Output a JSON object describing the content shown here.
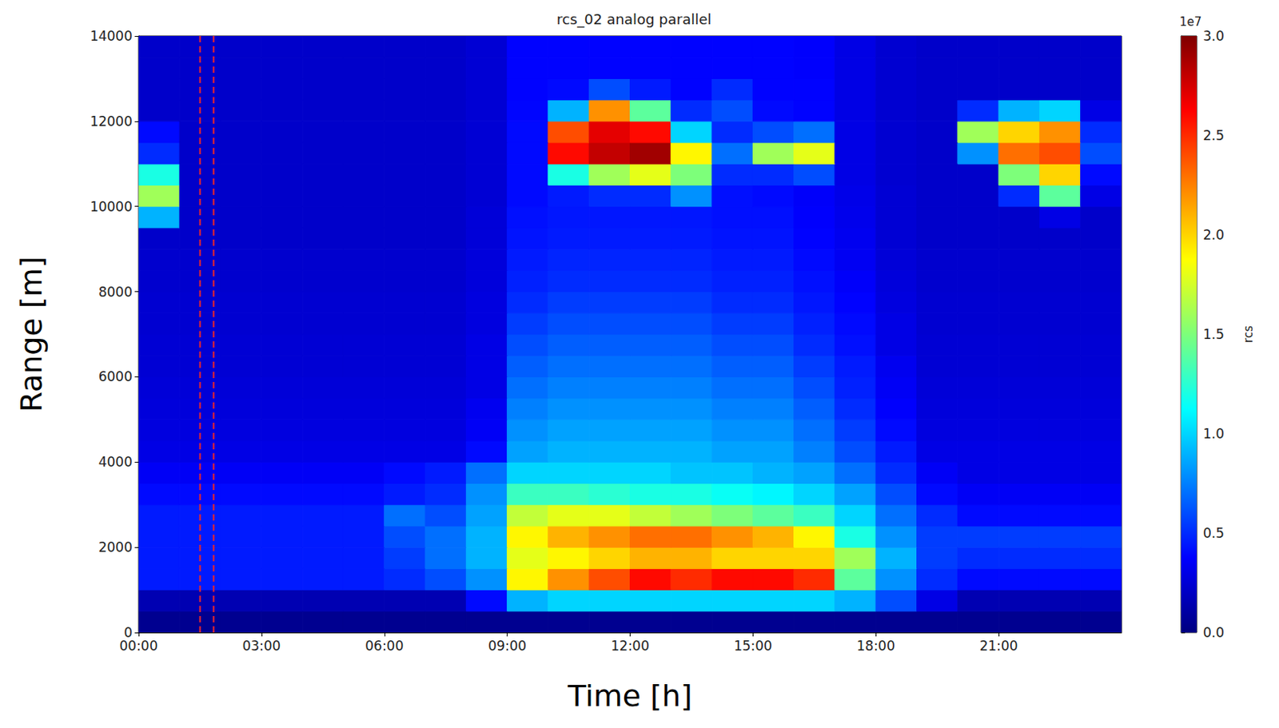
{
  "chart_data": {
    "type": "heatmap",
    "title": "rcs_02 analog parallel",
    "x_label": "Time [h]",
    "y_label": "Range [m]",
    "grid": false,
    "xlim": [
      0,
      24
    ],
    "xticks": [
      {
        "value": 0,
        "label": "00:00"
      },
      {
        "value": 3,
        "label": "03:00"
      },
      {
        "value": 6,
        "label": "06:00"
      },
      {
        "value": 9,
        "label": "09:00"
      },
      {
        "value": 12,
        "label": "12:00"
      },
      {
        "value": 15,
        "label": "15:00"
      },
      {
        "value": 18,
        "label": "18:00"
      },
      {
        "value": 21,
        "label": "21:00"
      }
    ],
    "ylim": [
      0,
      14000
    ],
    "yticks": [
      0,
      2000,
      4000,
      6000,
      8000,
      10000,
      12000,
      14000
    ],
    "x": [
      0.5,
      1.5,
      2.5,
      3.5,
      4.5,
      5.5,
      6.5,
      7.5,
      8.5,
      9.5,
      10.5,
      11.5,
      12.5,
      13.5,
      14.5,
      15.5,
      16.5,
      17.5,
      18.5,
      19.5,
      20.5,
      21.5,
      22.5,
      23.5
    ],
    "y": [
      250,
      750,
      1250,
      1750,
      2250,
      2750,
      3250,
      3750,
      4250,
      4750,
      5250,
      5750,
      6250,
      6750,
      7250,
      7750,
      8250,
      8750,
      9250,
      9750,
      10250,
      10750,
      11250,
      11750,
      12250,
      12750,
      13250,
      13750
    ],
    "cells": [
      [
        0.05,
        0.05,
        0.05,
        0.05,
        0.05,
        0.05,
        0.05,
        0.05,
        0.05,
        0.05,
        0.05,
        0.05,
        0.05,
        0.05,
        0.05,
        0.05,
        0.05,
        0.05,
        0.05,
        0.05,
        0.05,
        0.05,
        0.05,
        0.05
      ],
      [
        0.15,
        0.15,
        0.15,
        0.15,
        0.15,
        0.15,
        0.15,
        0.15,
        0.4,
        0.9,
        1.0,
        1.0,
        1.0,
        1.0,
        1.0,
        1.0,
        1.0,
        0.9,
        0.6,
        0.3,
        0.15,
        0.15,
        0.15,
        0.15
      ],
      [
        0.45,
        0.45,
        0.45,
        0.45,
        0.45,
        0.45,
        0.5,
        0.6,
        0.8,
        1.9,
        2.2,
        2.4,
        2.6,
        2.5,
        2.6,
        2.6,
        2.5,
        1.4,
        0.8,
        0.5,
        0.4,
        0.4,
        0.4,
        0.4
      ],
      [
        0.45,
        0.45,
        0.45,
        0.45,
        0.45,
        0.45,
        0.55,
        0.7,
        0.9,
        1.8,
        1.9,
        2.0,
        2.1,
        2.1,
        2.0,
        2.0,
        2.0,
        1.6,
        0.9,
        0.55,
        0.5,
        0.5,
        0.5,
        0.5
      ],
      [
        0.45,
        0.45,
        0.45,
        0.45,
        0.45,
        0.45,
        0.6,
        0.7,
        0.9,
        1.9,
        2.1,
        2.2,
        2.3,
        2.3,
        2.2,
        2.1,
        1.9,
        1.2,
        0.8,
        0.55,
        0.55,
        0.55,
        0.55,
        0.55
      ],
      [
        0.45,
        0.45,
        0.45,
        0.45,
        0.45,
        0.45,
        0.7,
        0.6,
        0.85,
        1.7,
        1.8,
        1.8,
        1.7,
        1.6,
        1.5,
        1.4,
        1.3,
        1.0,
        0.7,
        0.5,
        0.4,
        0.4,
        0.4,
        0.4
      ],
      [
        0.4,
        0.4,
        0.4,
        0.4,
        0.4,
        0.4,
        0.45,
        0.5,
        0.8,
        1.3,
        1.3,
        1.25,
        1.2,
        1.2,
        1.15,
        1.1,
        1.0,
        0.85,
        0.6,
        0.4,
        0.35,
        0.35,
        0.35,
        0.35
      ],
      [
        0.35,
        0.35,
        0.35,
        0.35,
        0.35,
        0.35,
        0.4,
        0.45,
        0.7,
        1.0,
        1.0,
        1.0,
        1.0,
        0.95,
        0.95,
        0.9,
        0.85,
        0.7,
        0.5,
        0.35,
        0.3,
        0.3,
        0.3,
        0.3
      ],
      [
        0.3,
        0.3,
        0.3,
        0.3,
        0.3,
        0.3,
        0.3,
        0.3,
        0.4,
        0.85,
        0.9,
        0.9,
        0.9,
        0.9,
        0.85,
        0.85,
        0.75,
        0.6,
        0.45,
        0.3,
        0.3,
        0.3,
        0.3,
        0.3
      ],
      [
        0.28,
        0.28,
        0.28,
        0.28,
        0.28,
        0.28,
        0.28,
        0.28,
        0.35,
        0.8,
        0.85,
        0.85,
        0.85,
        0.85,
        0.8,
        0.8,
        0.7,
        0.55,
        0.4,
        0.28,
        0.28,
        0.28,
        0.28,
        0.28
      ],
      [
        0.27,
        0.27,
        0.27,
        0.27,
        0.27,
        0.27,
        0.27,
        0.27,
        0.33,
        0.75,
        0.8,
        0.8,
        0.8,
        0.8,
        0.75,
        0.75,
        0.65,
        0.5,
        0.37,
        0.27,
        0.27,
        0.27,
        0.27,
        0.27
      ],
      [
        0.26,
        0.26,
        0.26,
        0.26,
        0.26,
        0.26,
        0.26,
        0.26,
        0.3,
        0.7,
        0.75,
        0.75,
        0.75,
        0.75,
        0.7,
        0.7,
        0.6,
        0.47,
        0.35,
        0.26,
        0.26,
        0.26,
        0.26,
        0.26
      ],
      [
        0.25,
        0.25,
        0.25,
        0.25,
        0.25,
        0.25,
        0.25,
        0.25,
        0.3,
        0.65,
        0.7,
        0.7,
        0.7,
        0.7,
        0.65,
        0.65,
        0.55,
        0.45,
        0.33,
        0.25,
        0.25,
        0.25,
        0.25,
        0.25
      ],
      [
        0.25,
        0.25,
        0.25,
        0.25,
        0.25,
        0.25,
        0.25,
        0.25,
        0.3,
        0.6,
        0.65,
        0.65,
        0.65,
        0.65,
        0.6,
        0.6,
        0.5,
        0.42,
        0.3,
        0.25,
        0.25,
        0.25,
        0.25,
        0.25
      ],
      [
        0.24,
        0.24,
        0.24,
        0.24,
        0.24,
        0.24,
        0.24,
        0.24,
        0.28,
        0.55,
        0.6,
        0.6,
        0.6,
        0.6,
        0.55,
        0.55,
        0.47,
        0.4,
        0.3,
        0.24,
        0.24,
        0.24,
        0.24,
        0.24
      ],
      [
        0.24,
        0.24,
        0.24,
        0.24,
        0.24,
        0.24,
        0.24,
        0.24,
        0.28,
        0.5,
        0.55,
        0.55,
        0.55,
        0.55,
        0.5,
        0.5,
        0.44,
        0.38,
        0.28,
        0.24,
        0.24,
        0.24,
        0.24,
        0.24
      ],
      [
        0.23,
        0.23,
        0.23,
        0.23,
        0.23,
        0.23,
        0.23,
        0.23,
        0.27,
        0.47,
        0.5,
        0.5,
        0.5,
        0.5,
        0.47,
        0.47,
        0.42,
        0.36,
        0.27,
        0.23,
        0.23,
        0.23,
        0.23,
        0.23
      ],
      [
        0.23,
        0.23,
        0.23,
        0.23,
        0.23,
        0.23,
        0.23,
        0.23,
        0.27,
        0.45,
        0.48,
        0.48,
        0.48,
        0.48,
        0.45,
        0.45,
        0.4,
        0.34,
        0.26,
        0.23,
        0.23,
        0.23,
        0.23,
        0.23
      ],
      [
        0.22,
        0.22,
        0.22,
        0.22,
        0.22,
        0.22,
        0.22,
        0.22,
        0.26,
        0.43,
        0.45,
        0.45,
        0.45,
        0.45,
        0.43,
        0.43,
        0.38,
        0.33,
        0.25,
        0.22,
        0.22,
        0.22,
        0.22,
        0.22
      ],
      [
        0.9,
        0.22,
        0.22,
        0.22,
        0.22,
        0.22,
        0.22,
        0.22,
        0.26,
        0.42,
        0.44,
        0.44,
        0.44,
        0.44,
        0.42,
        0.42,
        0.37,
        0.32,
        0.25,
        0.22,
        0.22,
        0.22,
        0.3,
        0.22
      ],
      [
        1.6,
        0.22,
        0.22,
        0.22,
        0.22,
        0.22,
        0.22,
        0.22,
        0.25,
        0.4,
        0.45,
        0.5,
        0.5,
        0.8,
        0.42,
        0.4,
        0.36,
        0.31,
        0.25,
        0.22,
        0.22,
        0.5,
        1.4,
        0.3
      ],
      [
        1.2,
        0.22,
        0.22,
        0.22,
        0.22,
        0.22,
        0.22,
        0.22,
        0.25,
        0.4,
        1.2,
        1.6,
        1.8,
        1.5,
        0.5,
        0.5,
        0.6,
        0.3,
        0.24,
        0.22,
        0.22,
        1.5,
        2.0,
        0.4
      ],
      [
        0.5,
        0.22,
        0.22,
        0.22,
        0.22,
        0.22,
        0.22,
        0.22,
        0.25,
        0.4,
        2.6,
        2.8,
        2.9,
        1.9,
        0.7,
        1.6,
        1.8,
        0.3,
        0.24,
        0.22,
        0.8,
        2.3,
        2.4,
        0.6
      ],
      [
        0.4,
        0.22,
        0.22,
        0.22,
        0.22,
        0.22,
        0.22,
        0.22,
        0.25,
        0.4,
        2.4,
        2.7,
        2.6,
        1.0,
        0.5,
        0.6,
        0.7,
        0.3,
        0.24,
        0.22,
        1.6,
        2.0,
        2.2,
        0.5
      ],
      [
        0.22,
        0.22,
        0.22,
        0.22,
        0.22,
        0.22,
        0.22,
        0.22,
        0.25,
        0.39,
        0.9,
        2.2,
        1.4,
        0.5,
        0.6,
        0.4,
        0.38,
        0.3,
        0.24,
        0.22,
        0.5,
        0.9,
        1.0,
        0.3
      ],
      [
        0.22,
        0.22,
        0.22,
        0.22,
        0.22,
        0.22,
        0.22,
        0.22,
        0.25,
        0.38,
        0.4,
        0.6,
        0.45,
        0.38,
        0.5,
        0.38,
        0.38,
        0.3,
        0.24,
        0.22,
        0.22,
        0.22,
        0.22,
        0.22
      ],
      [
        0.22,
        0.22,
        0.22,
        0.22,
        0.22,
        0.22,
        0.22,
        0.22,
        0.25,
        0.38,
        0.38,
        0.38,
        0.38,
        0.38,
        0.38,
        0.38,
        0.37,
        0.3,
        0.24,
        0.22,
        0.22,
        0.22,
        0.22,
        0.22
      ],
      [
        0.22,
        0.22,
        0.22,
        0.22,
        0.22,
        0.22,
        0.22,
        0.22,
        0.25,
        0.38,
        0.38,
        0.38,
        0.38,
        0.38,
        0.38,
        0.38,
        0.37,
        0.3,
        0.24,
        0.22,
        0.22,
        0.22,
        0.22,
        0.22
      ]
    ],
    "colorbar": {
      "label": "rcs",
      "offset_label": "1e7",
      "lim": [
        0,
        3
      ],
      "ticks": [
        {
          "value": 0,
          "label": "0.0"
        },
        0.5,
        {
          "value": 1,
          "label": "1.0"
        },
        1.5,
        {
          "value": 2,
          "label": "2.0"
        },
        2.5,
        {
          "value": 3,
          "label": "3.0"
        }
      ]
    },
    "vlines": {
      "x": [
        1.5,
        1.83
      ],
      "color": "#e8262b",
      "line_style": "dashed"
    }
  }
}
